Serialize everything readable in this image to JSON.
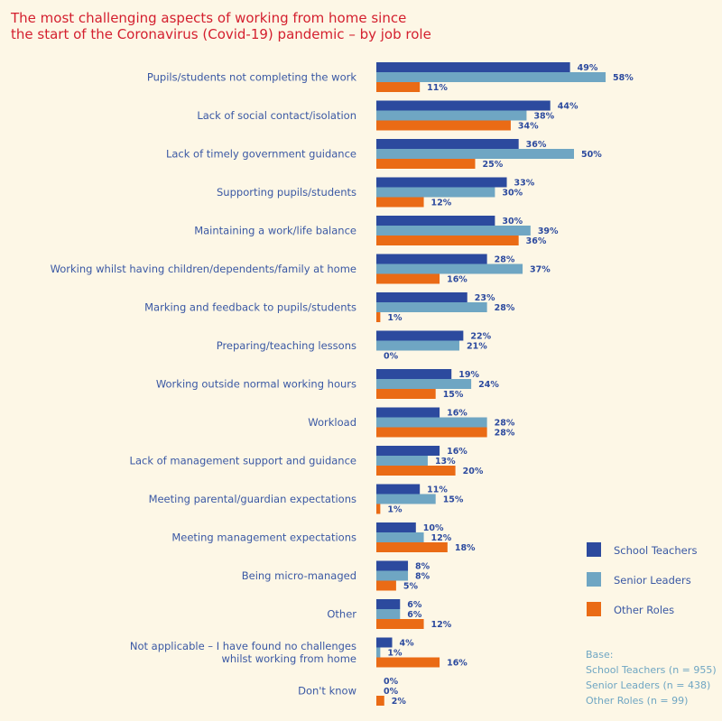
{
  "title": "The most challenging aspects of working from home since\nthe start of the Coronavirus (Covid-19) pandemic – by job role",
  "base": {
    "heading": "Base:",
    "lines": [
      "School Teachers (n = 955)",
      "Senior Leaders (n = 438)",
      "Other Roles (n = 99)"
    ]
  },
  "colors": {
    "School Teachers": "#2c4a9e",
    "Senior Leaders": "#6fa6c3",
    "Other Roles": "#ea6b15"
  },
  "chart_data": {
    "type": "bar",
    "orientation": "horizontal",
    "title": "The most challenging aspects of working from home since the start of the Coronavirus (Covid-19) pandemic – by job role",
    "legend_position": "right",
    "unit": "%",
    "categories": [
      "Pupils/students not completing the work",
      "Lack of social contact/isolation",
      "Lack of timely government guidance",
      "Supporting pupils/students",
      "Maintaining a work/life balance",
      "Working whilst having children/dependents/family at home",
      "Marking and feedback to pupils/students",
      "Preparing/teaching lessons",
      "Working outside normal working hours",
      "Workload",
      "Lack of management support and guidance",
      "Meeting parental/guardian expectations",
      "Meeting management expectations",
      "Being micro-managed",
      "Other",
      "Not applicable – I have found no challenges\nwhilst working from home",
      "Don't know"
    ],
    "series": [
      {
        "name": "School Teachers",
        "values": [
          49,
          44,
          36,
          33,
          30,
          28,
          23,
          22,
          19,
          16,
          16,
          11,
          10,
          8,
          6,
          4,
          0
        ]
      },
      {
        "name": "Senior Leaders",
        "values": [
          58,
          38,
          50,
          30,
          39,
          37,
          28,
          21,
          24,
          28,
          13,
          15,
          12,
          8,
          6,
          1,
          0
        ]
      },
      {
        "name": "Other Roles",
        "values": [
          11,
          34,
          25,
          12,
          36,
          16,
          1,
          0,
          15,
          28,
          20,
          1,
          18,
          5,
          12,
          16,
          2
        ]
      }
    ]
  }
}
